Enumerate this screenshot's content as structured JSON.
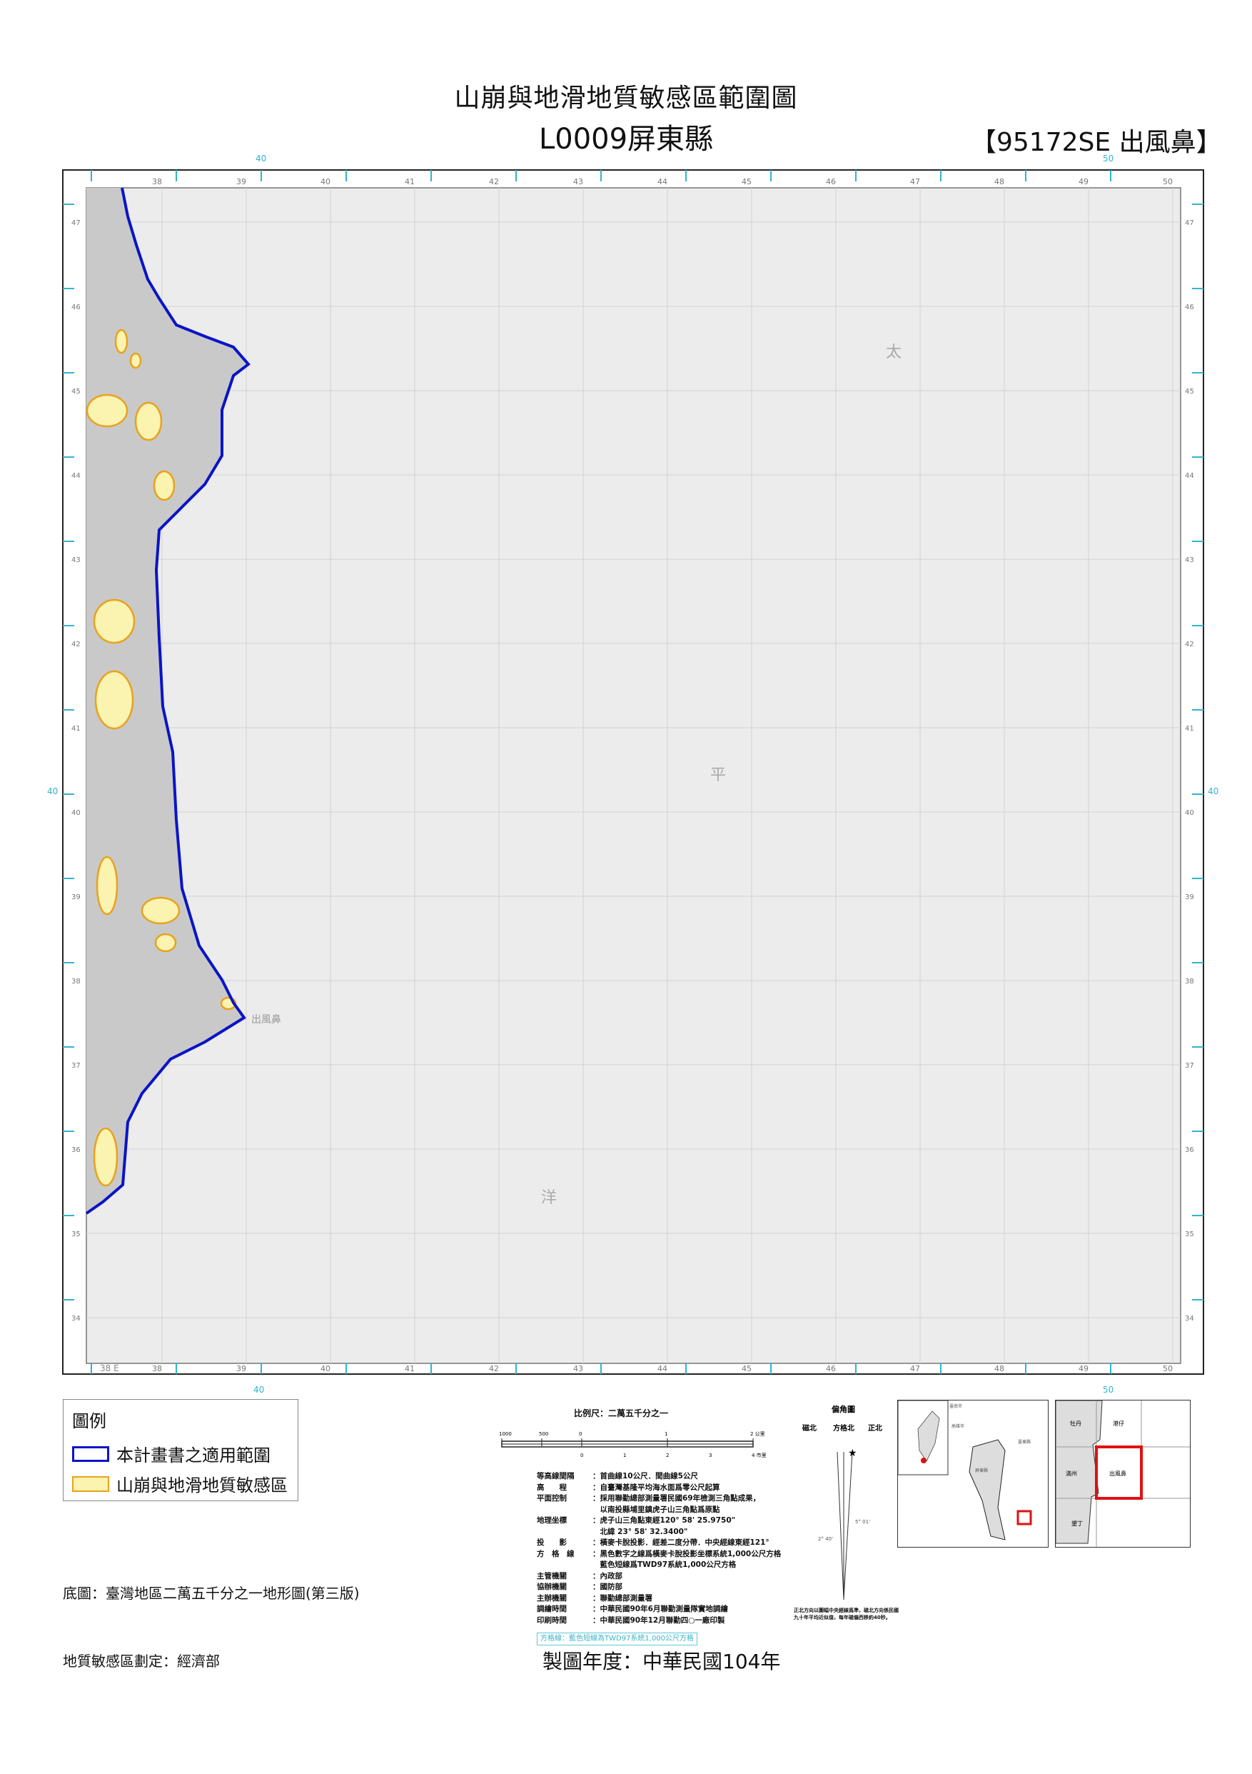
{
  "header": {
    "title": "山崩與地滑地質敏感區範圍圖",
    "subtitle": "L0009屏東縣",
    "sheet": "【95172SE 出風鼻】"
  },
  "map": {
    "top_labels": [
      "38",
      "39",
      "40",
      "41",
      "42",
      "43",
      "44",
      "45",
      "46",
      "47",
      "48",
      "49",
      "50"
    ],
    "left_labels": [
      "47",
      "46",
      "45",
      "44",
      "43",
      "42",
      "41",
      "40",
      "39",
      "38",
      "37",
      "36",
      "35",
      "34"
    ],
    "twd97_labels": {
      "top_left": "40",
      "top_right": "50",
      "left": "40",
      "right": "40",
      "bottom_left": "40",
      "bottom_right": "50"
    },
    "corner_label": "38 E",
    "ocean_labels": [
      "太",
      "平",
      "洋"
    ],
    "place_label": "出風鼻",
    "colors": {
      "boundary": "#0a14c8",
      "sensitive_fill": "#fbf3b0",
      "sensitive_edge": "#e8a21c",
      "land": "#c9c9c9",
      "sea": "#ececec",
      "twd97_tick": "#32b4cc"
    }
  },
  "legend": {
    "title": "圖例",
    "items": [
      {
        "label": "本計畫書之適用範圍",
        "type": "boundary"
      },
      {
        "label": "山崩與地滑地質敏感區",
        "type": "sensitive"
      }
    ]
  },
  "notes": {
    "base_map": "底圖：臺灣地區二萬五千分之一地形圖(第三版)",
    "designated_by": "地質敏感區劃定：經濟部",
    "year": "製圖年度：中華民國104年"
  },
  "scale": {
    "title": "比例尺：二萬五千分之一",
    "top_ticks": [
      "1000",
      "500",
      "0",
      "1",
      "2 公里"
    ],
    "bottom_ticks": [
      "0",
      "1",
      "2",
      "3",
      "4 市里"
    ]
  },
  "info": [
    {
      "k": "等高線間隔",
      "v": "首曲線10公尺．間曲線5公尺"
    },
    {
      "k": "高　　程",
      "v": "自臺灣基隆平均海水面爲零公尺起算"
    },
    {
      "k": "平面控制",
      "v": "採用聯勤總部測量署民國69年檢測三角點成果，"
    },
    {
      "k": "",
      "v": "以南投縣埔里鎮虎子山三角點爲原點"
    },
    {
      "k": "地理坐標",
      "v": "虎子山三角點東經120° 58' 25.9750\""
    },
    {
      "k": "",
      "v": "北緯 23° 58' 32.3400\""
    },
    {
      "k": "投　　影",
      "v": "橫麥卡脫投影．經差二度分帶．中央經線東經121°"
    },
    {
      "k": "方　格　線",
      "v": "黑色數字之線爲橫麥卡脫投影坐標系統1,000公尺方格"
    },
    {
      "k": "",
      "v": "藍色短線爲TWD97系統1,000公尺方格"
    },
    {
      "k": "主管機關",
      "v": "內政部"
    },
    {
      "k": "協辦機關",
      "v": "國防部"
    },
    {
      "k": "主辦機關",
      "v": "聯勤總部測量署"
    },
    {
      "k": "調繪時間",
      "v": "中華民國90年6月聯勤測量隊實地調繪"
    },
    {
      "k": "印刷時間",
      "v": "中華民國90年12月聯勤四○一廠印製"
    }
  ],
  "teal_note": "方格線：藍色短線為TWD97系統1,000公尺方格",
  "declination": {
    "title": "偏角圖",
    "magnetic": "磁北",
    "grid": "方格北",
    "true": "正北",
    "angle1": "5° 01'",
    "angle2": "2° 40'",
    "note": "正北方向以圖幅中央經線爲準，磁北方向係民國九十年平均近似值，每年磁偏西移約40秒。"
  },
  "locator": {
    "county_labels": [
      "臺南市",
      "高雄市",
      "臺東縣",
      "屏東縣"
    ],
    "sheet_labels": [
      "牡丹",
      "港仔",
      "滿州",
      "出風鼻",
      "墾丁"
    ],
    "highlight_color": "#e01010"
  }
}
